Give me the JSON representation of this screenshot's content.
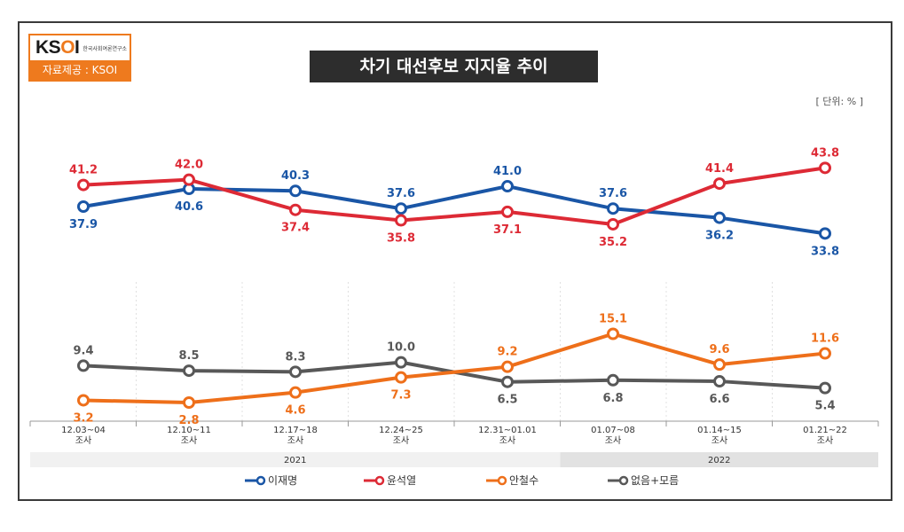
{
  "logo": {
    "mark": "KSOI",
    "subtitle": "한국사회여론연구소",
    "source": "자료제공 : KSOI"
  },
  "header": {
    "title": "차기 대선후보 지지율 추이",
    "unit": "[ 단위: % ]"
  },
  "chart_data": {
    "type": "line",
    "categories": [
      [
        "12.03~04",
        "조사"
      ],
      [
        "12.10~11",
        "조사"
      ],
      [
        "12.17~18",
        "조사"
      ],
      [
        "12.24~25",
        "조사"
      ],
      [
        "12.31~01.01",
        "조사"
      ],
      [
        "01.07~08",
        "조사"
      ],
      [
        "01.14~15",
        "조사"
      ],
      [
        "01.21~22",
        "조사"
      ]
    ],
    "years": [
      {
        "label": "2021",
        "from": 0,
        "to": 4
      },
      {
        "label": "2022",
        "from": 5,
        "to": 7
      }
    ],
    "series": [
      {
        "name": "이재명",
        "color": "#1a56a6",
        "values": [
          37.9,
          40.6,
          40.3,
          37.6,
          41.0,
          37.6,
          36.2,
          33.8
        ],
        "label_pos": [
          "below",
          "below",
          "above",
          "above",
          "above",
          "above",
          "below",
          "below"
        ]
      },
      {
        "name": "윤석열",
        "color": "#dd2a35",
        "values": [
          41.2,
          42.0,
          37.4,
          35.8,
          37.1,
          35.2,
          41.4,
          43.8
        ],
        "label_pos": [
          "above",
          "above",
          "below",
          "below",
          "below",
          "below",
          "above",
          "above"
        ]
      },
      {
        "name": "안철수",
        "color": "#ee6f1a",
        "values": [
          3.2,
          2.8,
          4.6,
          7.3,
          9.2,
          15.1,
          9.6,
          11.6
        ],
        "label_pos": [
          "below",
          "below",
          "below",
          "below",
          "above",
          "above",
          "above",
          "above"
        ]
      },
      {
        "name": "없음+모름",
        "color": "#585858",
        "values": [
          9.4,
          8.5,
          8.3,
          10.0,
          6.5,
          6.8,
          6.6,
          5.4
        ],
        "label_pos": [
          "above",
          "above",
          "above",
          "above",
          "below",
          "below",
          "below",
          "below"
        ]
      }
    ]
  }
}
